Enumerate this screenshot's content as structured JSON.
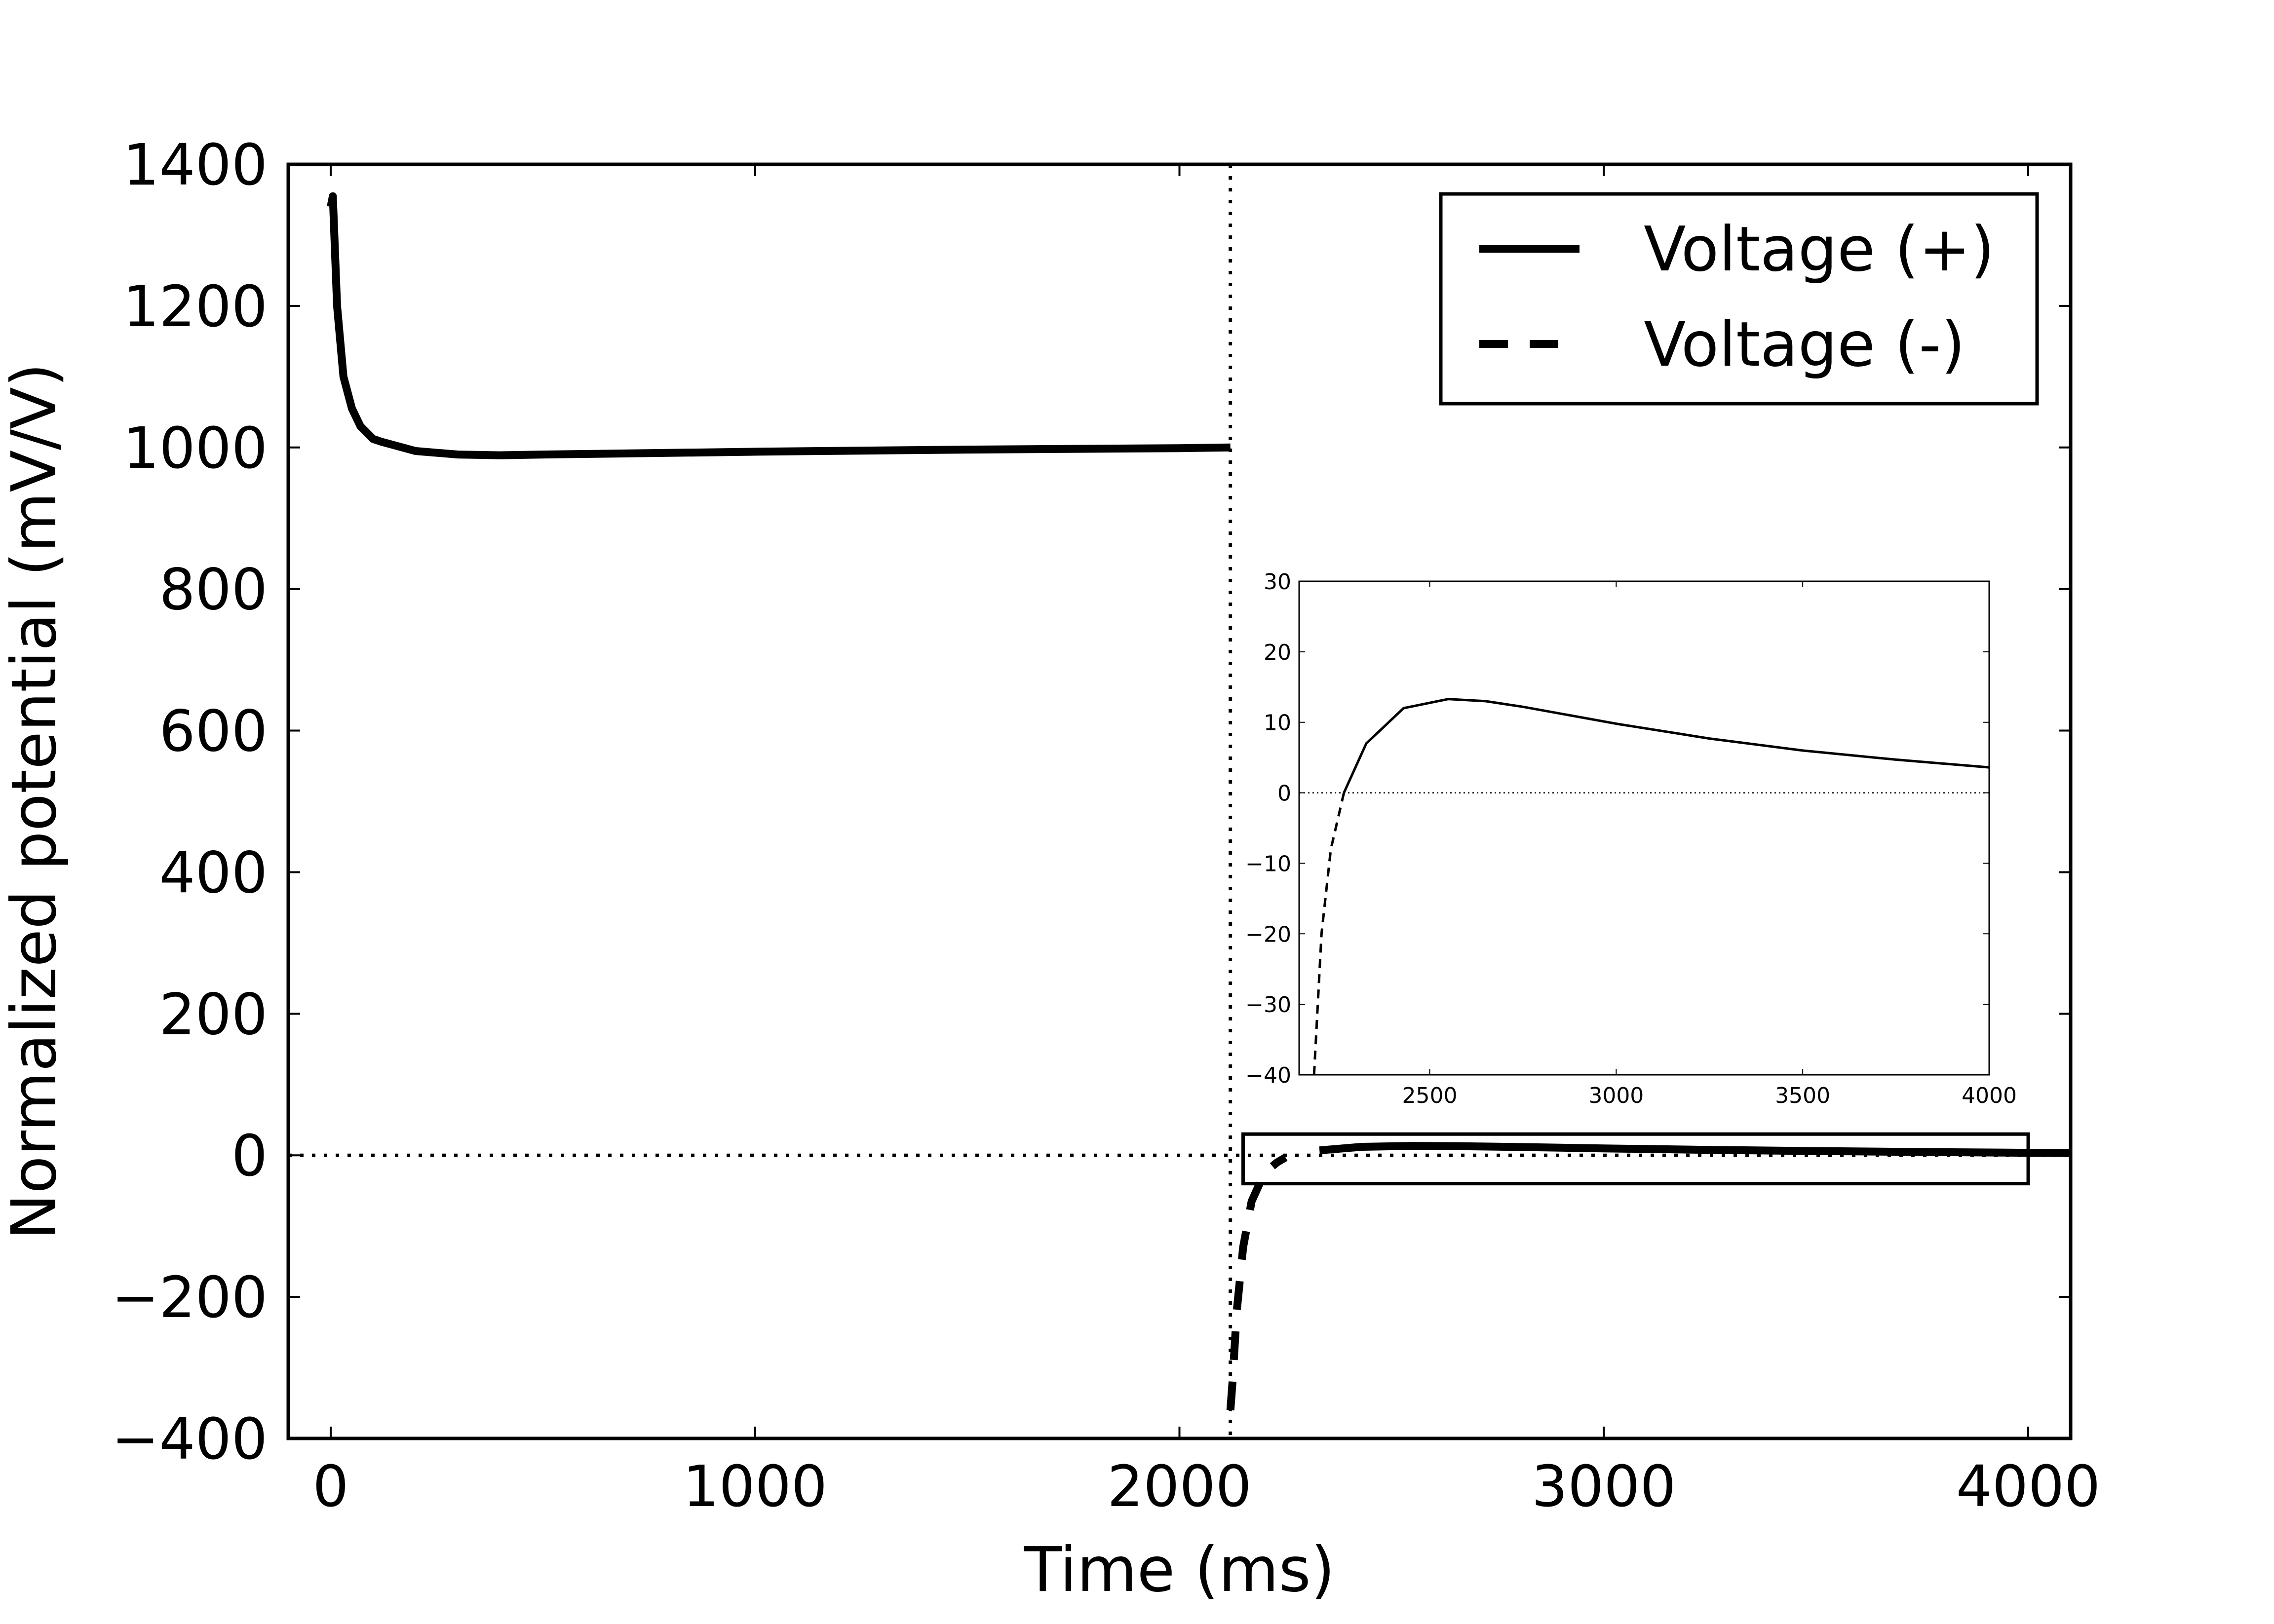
{
  "chart_data": [
    {
      "type": "line",
      "xlabel": "Time (ms)",
      "ylabel": "Normalized potential (mV/V)",
      "xlim": [
        -100,
        4100
      ],
      "ylim": [
        -400,
        1400
      ],
      "xticks": [
        0,
        1000,
        2000,
        3000,
        4000
      ],
      "yticks": [
        -400,
        -200,
        0,
        200,
        400,
        600,
        800,
        1000,
        1200,
        1400
      ],
      "legend": "top-right",
      "reference_lines": [
        {
          "orientation": "vertical",
          "x": 2120,
          "style": "dotted"
        },
        {
          "orientation": "horizontal",
          "y": 0,
          "style": "dotted"
        }
      ],
      "zoom_box": {
        "x": [
          2150,
          4000
        ],
        "y": [
          -40,
          30
        ]
      },
      "series": [
        {
          "name": "Voltage (+)",
          "style": "solid",
          "x": [
            0,
            5,
            15,
            30,
            50,
            70,
            100,
            120,
            200,
            300,
            400,
            500,
            750,
            1000,
            1500,
            2000,
            2120
          ],
          "y": [
            1340,
            1355,
            1200,
            1100,
            1055,
            1030,
            1012,
            1008,
            995,
            990,
            989,
            990,
            992,
            994,
            997,
            999,
            1000
          ]
        },
        {
          "name": "Voltage (-)",
          "style": "dashed",
          "x": [
            2120,
            2125,
            2135,
            2150,
            2170,
            2200,
            2230,
            2250
          ],
          "y": [
            -360,
            -320,
            -220,
            -130,
            -65,
            -25,
            -10,
            -3
          ]
        },
        {
          "name": "",
          "style": "solid",
          "x": [
            2330,
            2430,
            2550,
            2650,
            2750,
            3000,
            3250,
            3500,
            3750,
            4000,
            4100
          ],
          "y": [
            7,
            12,
            13.3,
            13,
            12.2,
            9.8,
            7.7,
            6,
            4.7,
            3.6,
            3.2
          ]
        }
      ]
    },
    {
      "type": "line",
      "xlabel": "",
      "ylabel": "",
      "xlim": [
        2150,
        4000
      ],
      "ylim": [
        -40,
        30
      ],
      "xticks": [
        2500,
        3000,
        3500,
        4000
      ],
      "yticks": [
        -40,
        -30,
        -20,
        -10,
        0,
        10,
        20,
        30
      ],
      "reference_lines": [
        {
          "orientation": "horizontal",
          "y": 0,
          "style": "dotted"
        }
      ],
      "series": [
        {
          "name": "Voltage (+)",
          "style": "solid",
          "x": [
            2270,
            2330,
            2430,
            2550,
            2650,
            2750,
            3000,
            3250,
            3500,
            3750,
            4000
          ],
          "y": [
            0,
            7,
            12,
            13.3,
            13,
            12.2,
            9.8,
            7.7,
            6,
            4.7,
            3.6
          ]
        },
        {
          "name": "Voltage (-)",
          "style": "dashed",
          "x": [
            2190,
            2210,
            2235,
            2270
          ],
          "y": [
            -40,
            -20,
            -8,
            0
          ]
        }
      ]
    }
  ]
}
